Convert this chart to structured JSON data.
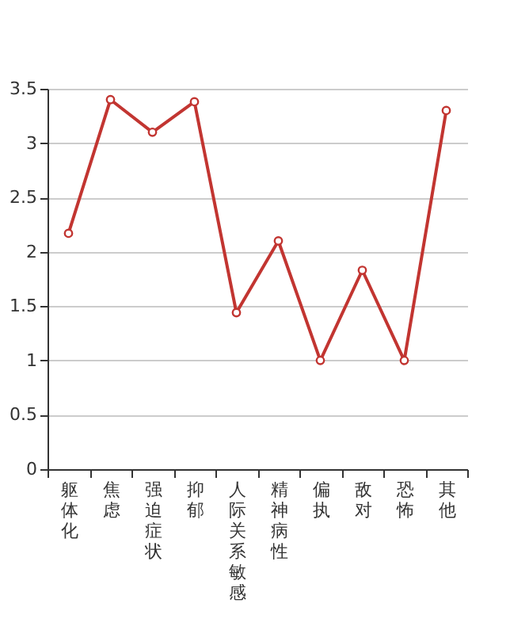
{
  "chart_data": {
    "type": "line",
    "categories": [
      "躯体化",
      "焦虑",
      "强迫症状",
      "抑郁",
      "人际关系敏感",
      "精神病性",
      "偏执",
      "敌对",
      "恐怖",
      "其他"
    ],
    "series": [
      {
        "color": "#c23531",
        "values": [
          2.17,
          3.4,
          3.1,
          3.38,
          1.44,
          2.1,
          1.0,
          1.83,
          1.0,
          3.3
        ]
      }
    ],
    "ylim": [
      0,
      3.5
    ],
    "yticks": [
      0,
      0.5,
      1,
      1.5,
      2,
      2.5,
      3,
      3.5
    ],
    "grid": "y",
    "marker": "circle",
    "line_style": "solid",
    "legend": false
  }
}
